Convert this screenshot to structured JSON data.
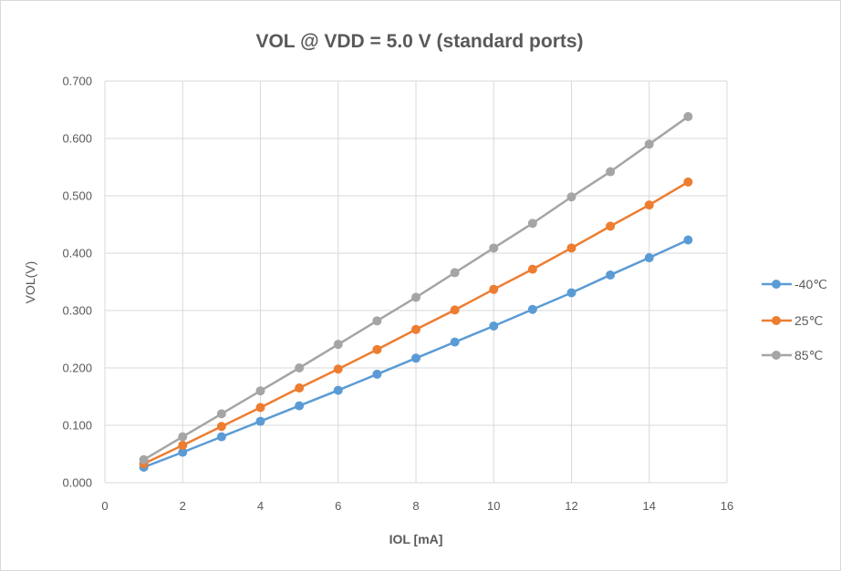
{
  "chart_data": {
    "type": "line",
    "title": "VOL @ VDD = 5.0 V  (standard ports)",
    "xlabel": "IOL [mA]",
    "ylabel": "VOL(V)",
    "xlim": [
      0,
      16
    ],
    "ylim": [
      0,
      0.7
    ],
    "x_ticks": [
      "0",
      "2",
      "4",
      "6",
      "8",
      "10",
      "12",
      "14",
      "16"
    ],
    "y_ticks": [
      "0.000",
      "0.100",
      "0.200",
      "0.300",
      "0.400",
      "0.500",
      "0.600",
      "0.700"
    ],
    "grid": true,
    "legend_position": "right",
    "x": [
      1,
      2,
      3,
      4,
      5,
      6,
      7,
      8,
      9,
      10,
      11,
      12,
      13,
      14,
      15
    ],
    "series": [
      {
        "name": "-40℃",
        "color": "#5b9bd5",
        "values": [
          0.027,
          0.053,
          0.08,
          0.107,
          0.134,
          0.161,
          0.189,
          0.217,
          0.245,
          0.273,
          0.302,
          0.331,
          0.362,
          0.392,
          0.423
        ]
      },
      {
        "name": "25℃",
        "color": "#ed7d31",
        "values": [
          0.033,
          0.065,
          0.098,
          0.131,
          0.165,
          0.198,
          0.232,
          0.267,
          0.301,
          0.337,
          0.372,
          0.409,
          0.447,
          0.484,
          0.524
        ]
      },
      {
        "name": "85℃",
        "color": "#a5a5a5",
        "values": [
          0.04,
          0.08,
          0.12,
          0.16,
          0.2,
          0.241,
          0.282,
          0.323,
          0.366,
          0.409,
          0.452,
          0.498,
          0.542,
          0.59,
          0.638
        ]
      }
    ]
  }
}
